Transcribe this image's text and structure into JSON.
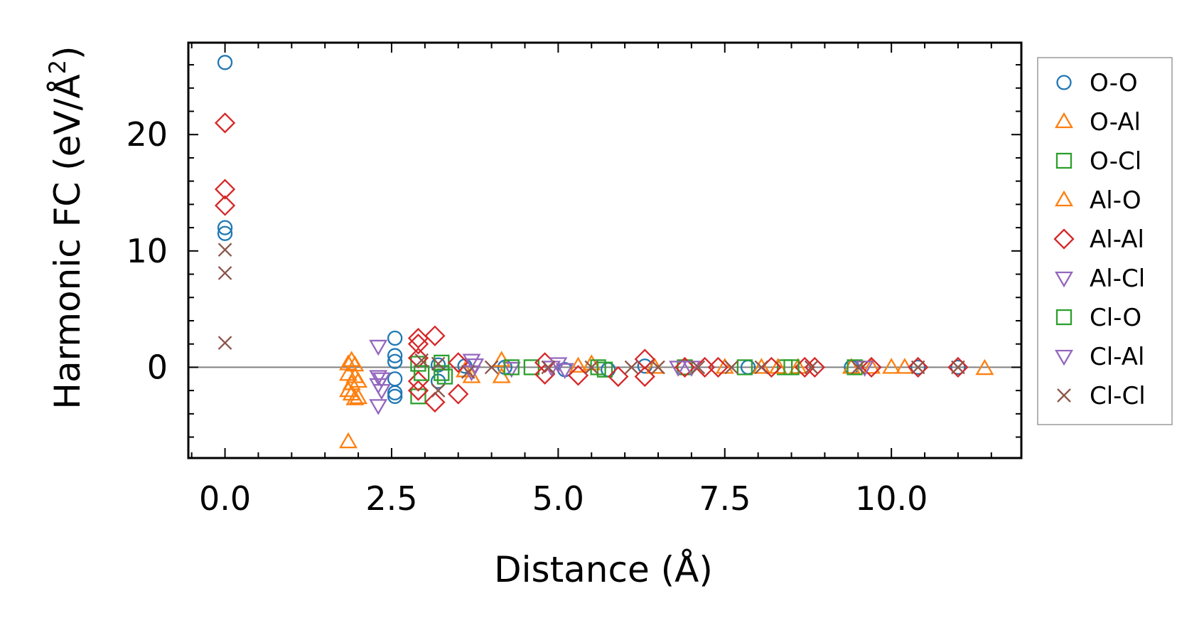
{
  "chart_data": {
    "type": "scatter",
    "xlabel": "Distance (Å)",
    "ylabel": {
      "main": "Harmonic FC (eV/Å",
      "sup": "2",
      "close": ")"
    },
    "xlim": [
      -0.55,
      11.95
    ],
    "ylim": [
      -7.8,
      27.9
    ],
    "xticks": [
      {
        "v": 0.0,
        "label": "0.0"
      },
      {
        "v": 2.5,
        "label": "2.5"
      },
      {
        "v": 5.0,
        "label": "5.0"
      },
      {
        "v": 7.5,
        "label": "7.5"
      },
      {
        "v": 10.0,
        "label": "10.0"
      }
    ],
    "yticks": [
      {
        "v": 0,
        "label": "0"
      },
      {
        "v": 10,
        "label": "10"
      },
      {
        "v": 20,
        "label": "20"
      }
    ],
    "zero_line": true,
    "grid": false,
    "legend_position": "outside right",
    "series": [
      {
        "name": "O-O",
        "marker": "circle",
        "color": "#1f77b4",
        "points": [
          [
            0,
            26.2
          ],
          [
            0,
            12.0
          ],
          [
            0,
            11.5
          ],
          [
            2.55,
            2.5
          ],
          [
            2.55,
            1.0
          ],
          [
            2.55,
            0.5
          ],
          [
            2.55,
            -1.0
          ],
          [
            2.55,
            -2.2
          ],
          [
            2.55,
            -2.5
          ],
          [
            3.2,
            -1.2
          ],
          [
            3.2,
            0.2
          ],
          [
            3.6,
            0.1
          ],
          [
            4.2,
            0.0
          ],
          [
            5.1,
            -0.2
          ],
          [
            5.75,
            -0.2
          ],
          [
            6.3,
            0.1
          ],
          [
            7.85,
            0.0
          ],
          [
            9.4,
            0.0
          ],
          [
            10.4,
            0.0
          ],
          [
            11.0,
            0.0
          ]
        ]
      },
      {
        "name": "O-Al",
        "marker": "triangle-up",
        "color": "#ff7f0e",
        "points": [
          [
            1.85,
            0.3
          ],
          [
            1.85,
            -0.6
          ],
          [
            1.85,
            -2.0
          ],
          [
            1.9,
            0.6
          ],
          [
            1.9,
            -1.4
          ],
          [
            1.9,
            -2.3
          ],
          [
            1.95,
            -0.8
          ],
          [
            1.95,
            -2.7
          ],
          [
            1.85,
            -6.4
          ],
          [
            3.7,
            -0.8
          ],
          [
            4.15,
            0.6
          ],
          [
            4.15,
            -0.8
          ],
          [
            5.5,
            0.3
          ],
          [
            6.45,
            0.0
          ],
          [
            7.5,
            0.0
          ],
          [
            8.05,
            0.0
          ],
          [
            8.6,
            0.0
          ],
          [
            9.4,
            0.0
          ],
          [
            10.0,
            0.0
          ],
          [
            10.2,
            0.0
          ],
          [
            11.4,
            -0.1
          ]
        ]
      },
      {
        "name": "O-Cl",
        "marker": "square",
        "color": "#2ca02c",
        "points": [
          [
            2.9,
            0.3
          ],
          [
            2.9,
            -2.5
          ],
          [
            3.25,
            0.4
          ],
          [
            3.25,
            -0.5
          ],
          [
            4.6,
            0.0
          ],
          [
            5.7,
            -0.2
          ],
          [
            6.9,
            0.0
          ],
          [
            7.8,
            0.0
          ],
          [
            8.4,
            0.0
          ],
          [
            9.45,
            0.0
          ]
        ]
      },
      {
        "name": "Al-O",
        "marker": "triangle-up",
        "color": "#ff7f0e",
        "points": [
          [
            1.95,
            0.2
          ],
          [
            2.0,
            -1.2
          ],
          [
            2.0,
            -2.6
          ],
          [
            3.6,
            -0.3
          ],
          [
            5.3,
            0.1
          ],
          [
            8.3,
            0.0
          ],
          [
            9.7,
            0.0
          ]
        ]
      },
      {
        "name": "Al-Al",
        "marker": "diamond",
        "color": "#d62728",
        "points": [
          [
            0,
            21.0
          ],
          [
            0,
            15.3
          ],
          [
            0,
            13.9
          ],
          [
            2.9,
            2.5
          ],
          [
            2.9,
            2.0
          ],
          [
            2.9,
            0.8
          ],
          [
            2.9,
            -1.2
          ],
          [
            2.9,
            -2.0
          ],
          [
            3.15,
            2.7
          ],
          [
            3.15,
            -3.0
          ],
          [
            3.5,
            0.4
          ],
          [
            3.5,
            -2.3
          ],
          [
            4.8,
            0.4
          ],
          [
            4.8,
            -0.6
          ],
          [
            5.3,
            -0.7
          ],
          [
            5.9,
            -0.8
          ],
          [
            6.3,
            0.7
          ],
          [
            6.3,
            -0.8
          ],
          [
            6.9,
            0.0
          ],
          [
            7.2,
            0.0
          ],
          [
            7.4,
            0.0
          ],
          [
            8.2,
            0.0
          ],
          [
            8.7,
            0.0
          ],
          [
            8.85,
            0.0
          ],
          [
            9.7,
            0.0
          ],
          [
            10.4,
            0.0
          ],
          [
            11.0,
            0.0
          ]
        ]
      },
      {
        "name": "Al-Cl",
        "marker": "triangle-down",
        "color": "#9467bd",
        "points": [
          [
            2.3,
            1.8
          ],
          [
            2.3,
            -0.8
          ],
          [
            2.3,
            -1.5
          ],
          [
            2.3,
            -3.3
          ],
          [
            3.7,
            0.6
          ],
          [
            3.7,
            -0.4
          ],
          [
            4.3,
            -0.1
          ],
          [
            5.0,
            0.3
          ],
          [
            6.8,
            0.0
          ],
          [
            9.6,
            0.0
          ]
        ]
      },
      {
        "name": "Cl-O",
        "marker": "square",
        "color": "#2ca02c",
        "points": [
          [
            2.95,
            -0.5
          ],
          [
            3.3,
            -0.8
          ],
          [
            4.3,
            0.0
          ],
          [
            5.6,
            0.0
          ],
          [
            8.5,
            0.0
          ]
        ]
      },
      {
        "name": "Cl-Al",
        "marker": "triangle-down",
        "color": "#9467bd",
        "points": [
          [
            2.35,
            -1.0
          ],
          [
            2.35,
            -2.0
          ],
          [
            3.75,
            0.2
          ],
          [
            4.9,
            0.0
          ],
          [
            5.1,
            -0.2
          ],
          [
            7.0,
            0.0
          ]
        ]
      },
      {
        "name": "Cl-Cl",
        "marker": "x",
        "color": "#8c564b",
        "points": [
          [
            0,
            10.1
          ],
          [
            0,
            8.1
          ],
          [
            0,
            2.1
          ],
          [
            2.95,
            0.6
          ],
          [
            3.2,
            -2.0
          ],
          [
            3.2,
            0.3
          ],
          [
            3.65,
            -0.4
          ],
          [
            4.0,
            0.0
          ],
          [
            4.85,
            0.0
          ],
          [
            5.5,
            0.0
          ],
          [
            6.1,
            0.0
          ],
          [
            6.5,
            0.0
          ],
          [
            7.1,
            0.0
          ],
          [
            7.6,
            0.0
          ],
          [
            8.05,
            0.0
          ],
          [
            8.8,
            0.0
          ],
          [
            9.5,
            0.0
          ],
          [
            10.4,
            0.0
          ],
          [
            11.0,
            0.0
          ]
        ]
      }
    ]
  }
}
